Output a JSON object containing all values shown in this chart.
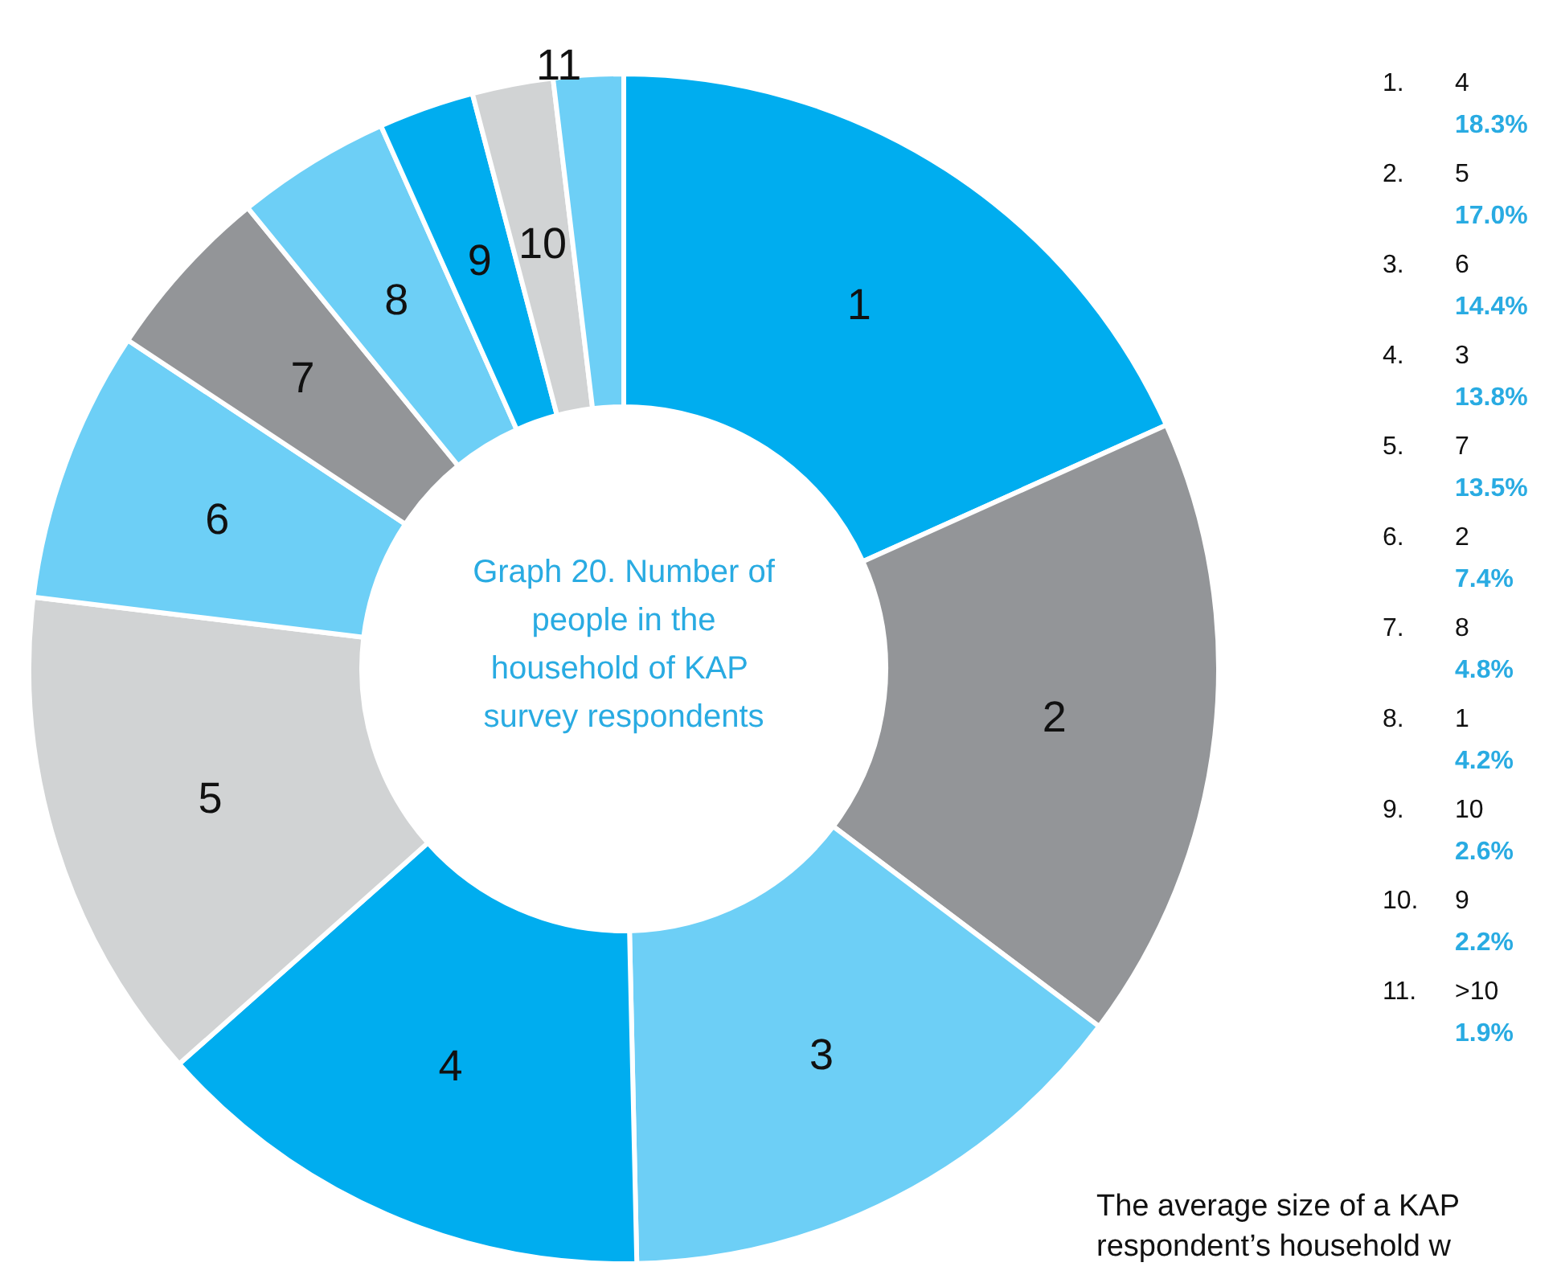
{
  "chart_data": {
    "type": "donut",
    "title": "Graph 20. Number of people in the household of KAP survey respondents",
    "categories": [
      "1",
      "2",
      "3",
      "4",
      "5",
      "6",
      "7",
      "8",
      "9",
      "10",
      "11"
    ],
    "values": [
      18.3,
      17.0,
      14.4,
      13.8,
      13.5,
      7.4,
      4.8,
      4.2,
      2.6,
      2.2,
      1.9
    ],
    "colors": [
      "#00adef",
      "#939598",
      "#6dcff6",
      "#00adef",
      "#d1d3d4",
      "#6dcff6",
      "#939598",
      "#6dcff6",
      "#00adef",
      "#d1d3d4",
      "#6dcff6"
    ],
    "annotations": [
      {
        "text": "1.",
        "x": "1"
      },
      {
        "text": "2.",
        "x": "2"
      },
      {
        "text": "3.",
        "x": "3"
      },
      {
        "text": "4.",
        "x": "4"
      },
      {
        "text": "5.",
        "x": "5"
      },
      {
        "text": "6.",
        "x": "6"
      },
      {
        "text": "7.",
        "x": "7"
      },
      {
        "text": "8.",
        "x": "8"
      },
      {
        "text": "9.",
        "x": "9"
      },
      {
        "text": "10.",
        "x": "10"
      },
      {
        "text": "11.",
        "x": "11"
      },
      {
        "text": "4",
        "x": "1"
      },
      {
        "text": "5",
        "x": "2"
      },
      {
        "text": "6",
        "x": "3"
      },
      {
        "text": "3",
        "x": "4"
      },
      {
        "text": "7",
        "x": "5"
      },
      {
        "text": "2",
        "x": "6"
      },
      {
        "text": "8",
        "x": "7"
      },
      {
        "text": "1",
        "x": "8"
      },
      {
        "text": "10",
        "x": "9"
      },
      {
        "text": "9",
        "x": "10"
      },
      {
        "text": ">10",
        "x": "11"
      },
      {
        "text": "18.3%",
        "x": "1"
      },
      {
        "text": "17.0%",
        "x": "2"
      },
      {
        "text": "14.4%",
        "x": "3"
      },
      {
        "text": "13.8%",
        "x": "4"
      },
      {
        "text": "13.5%",
        "x": "5"
      },
      {
        "text": "7.4%",
        "x": "6"
      },
      {
        "text": "4.8%",
        "x": "7"
      },
      {
        "text": "4.2%",
        "x": "8"
      },
      {
        "text": "2.6%",
        "x": "9"
      },
      {
        "text": "2.2%",
        "x": "10"
      },
      {
        "text": "1.9%",
        "x": "11"
      },
      "The average size of a KAP respondent’s household w"
    ]
  }
}
